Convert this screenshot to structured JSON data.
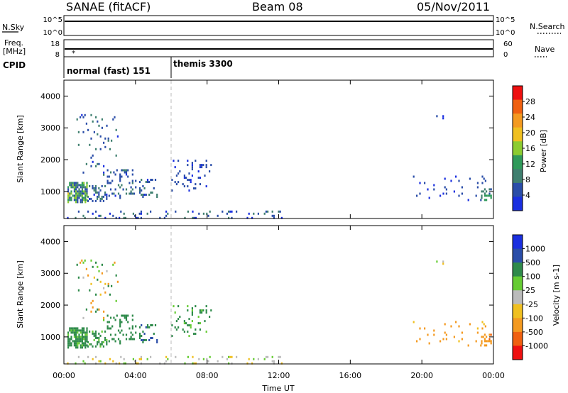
{
  "header": {
    "station": "SANAE (fitACF)",
    "beam": "Beam 08",
    "date": "05/Nov/2011"
  },
  "noise_panel": {
    "left_label": "N.Sky",
    "right_label": "N.Search",
    "left_ticks": [
      "10^5",
      "10^0"
    ],
    "right_ticks": [
      "10^5",
      "10^0"
    ]
  },
  "freq_panel": {
    "left_label_1": "Freq.",
    "left_label_2": "[MHz]",
    "left_ticks": [
      "18",
      "8"
    ],
    "right_label": "Nave",
    "right_ticks": [
      "60",
      "0"
    ]
  },
  "cpid_panel": {
    "label": "CPID",
    "modes": [
      {
        "name": "normal (fast) 151",
        "start_hour": 0
      },
      {
        "name": "themis 3300",
        "start_hour": 6
      }
    ]
  },
  "colors": {
    "power": [
      "#1a2fe0",
      "#2a4da8",
      "#3f7f6f",
      "#2f9a5a",
      "#8ccc30",
      "#f0c020",
      "#f49a20",
      "#f06010",
      "#ee1010"
    ],
    "velocity": [
      "#1a2fe0",
      "#2a4da8",
      "#2e8a4a",
      "#66cc33",
      "#bbbbbb",
      "#f0c020",
      "#f49a20",
      "#f06010",
      "#ee1010"
    ],
    "frame": "#000000",
    "dashed_line": "#bbbbbb"
  },
  "chart_data": [
    {
      "type": "heatmap",
      "panel": "power",
      "ylabel": "Slant Range [km]",
      "xlim": [
        0,
        24
      ],
      "ylim": [
        150,
        4500
      ],
      "yticks": [
        "1000",
        "2000",
        "3000",
        "4000"
      ],
      "colorbar": {
        "label": "Power [dB]",
        "range": [
          0,
          32
        ],
        "tick_values": [
          4,
          8,
          12,
          16,
          20,
          24,
          28
        ],
        "ticks": [
          "4",
          "8",
          "12",
          "16",
          "20",
          "24",
          "28"
        ]
      },
      "scatter_regions": [
        {
          "t0": 0.2,
          "t1": 1.3,
          "r0": 650,
          "r1": 1300,
          "v0": 4,
          "v1": 18,
          "density": 0.75
        },
        {
          "t0": 1.3,
          "t1": 2.4,
          "r0": 700,
          "r1": 1200,
          "v0": 3,
          "v1": 10,
          "density": 0.35
        },
        {
          "t0": 2.4,
          "t1": 4.0,
          "r0": 800,
          "r1": 1700,
          "v0": 3,
          "v1": 9,
          "density": 0.2
        },
        {
          "t0": 4.2,
          "t1": 5.2,
          "r0": 800,
          "r1": 1400,
          "v0": 3,
          "v1": 9,
          "density": 0.3
        },
        {
          "t0": 0.7,
          "t1": 3.0,
          "r0": 1500,
          "r1": 3500,
          "v0": 3,
          "v1": 10,
          "density": 0.06
        },
        {
          "t0": 6.0,
          "t1": 8.2,
          "r0": 1000,
          "r1": 2000,
          "v0": 2,
          "v1": 7,
          "density": 0.1
        },
        {
          "t0": 0.0,
          "t1": 12.5,
          "r0": 180,
          "r1": 400,
          "v0": 2,
          "v1": 10,
          "density": 0.12
        },
        {
          "t0": 19.5,
          "t1": 23.8,
          "r0": 700,
          "r1": 1500,
          "v0": 2,
          "v1": 6,
          "density": 0.05
        },
        {
          "t0": 23.3,
          "t1": 23.9,
          "r0": 750,
          "r1": 1100,
          "v0": 6,
          "v1": 14,
          "density": 0.45
        },
        {
          "t0": 20.8,
          "t1": 21.3,
          "r0": 3200,
          "r1": 3400,
          "v0": 2,
          "v1": 5,
          "density": 0.15
        }
      ]
    },
    {
      "type": "heatmap",
      "panel": "velocity",
      "ylabel": "Slant Range [km]",
      "xlabel": "Time UT",
      "xlim": [
        0,
        24
      ],
      "ylim": [
        150,
        4500
      ],
      "xticks": [
        "00:00",
        "04:00",
        "08:00",
        "12:00",
        "16:00",
        "20:00",
        "00:00"
      ],
      "yticks": [
        "1000",
        "2000",
        "3000",
        "4000"
      ],
      "colorbar": {
        "label": "Velocity [m s-1]",
        "tick_values": [
          1000,
          500,
          100,
          25,
          -25,
          -100,
          -500,
          -1000
        ],
        "ticks": [
          "1000",
          "500",
          "100",
          "25",
          "-25",
          "-100",
          "-500",
          "-1000"
        ]
      },
      "scatter_regions": [
        {
          "t0": 0.2,
          "t1": 1.3,
          "r0": 650,
          "r1": 1300,
          "v0": 60,
          "v1": 400,
          "density": 0.75
        },
        {
          "t0": 1.3,
          "t1": 2.4,
          "r0": 700,
          "r1": 1200,
          "v0": 50,
          "v1": 300,
          "density": 0.35
        },
        {
          "t0": 2.4,
          "t1": 4.0,
          "r0": 800,
          "r1": 1700,
          "v0": 80,
          "v1": 500,
          "density": 0.2
        },
        {
          "t0": 4.2,
          "t1": 5.2,
          "r0": 800,
          "r1": 1400,
          "v0": 100,
          "v1": 600,
          "density": 0.3
        },
        {
          "t0": 0.7,
          "t1": 3.0,
          "r0": 1500,
          "r1": 3500,
          "v0": -300,
          "v1": 300,
          "density": 0.06
        },
        {
          "t0": 6.0,
          "t1": 8.2,
          "r0": 1000,
          "r1": 2000,
          "v0": 30,
          "v1": 300,
          "density": 0.1
        },
        {
          "t0": 0.0,
          "t1": 12.5,
          "r0": 180,
          "r1": 400,
          "v0": -60,
          "v1": 60,
          "density": 0.12
        },
        {
          "t0": 19.5,
          "t1": 23.8,
          "r0": 700,
          "r1": 1500,
          "v0": -400,
          "v1": -50,
          "density": 0.05
        },
        {
          "t0": 23.3,
          "t1": 23.9,
          "r0": 750,
          "r1": 1100,
          "v0": -700,
          "v1": -150,
          "density": 0.45
        },
        {
          "t0": 20.8,
          "t1": 21.3,
          "r0": 3200,
          "r1": 3400,
          "v0": -30,
          "v1": 30,
          "density": 0.15
        }
      ]
    }
  ]
}
